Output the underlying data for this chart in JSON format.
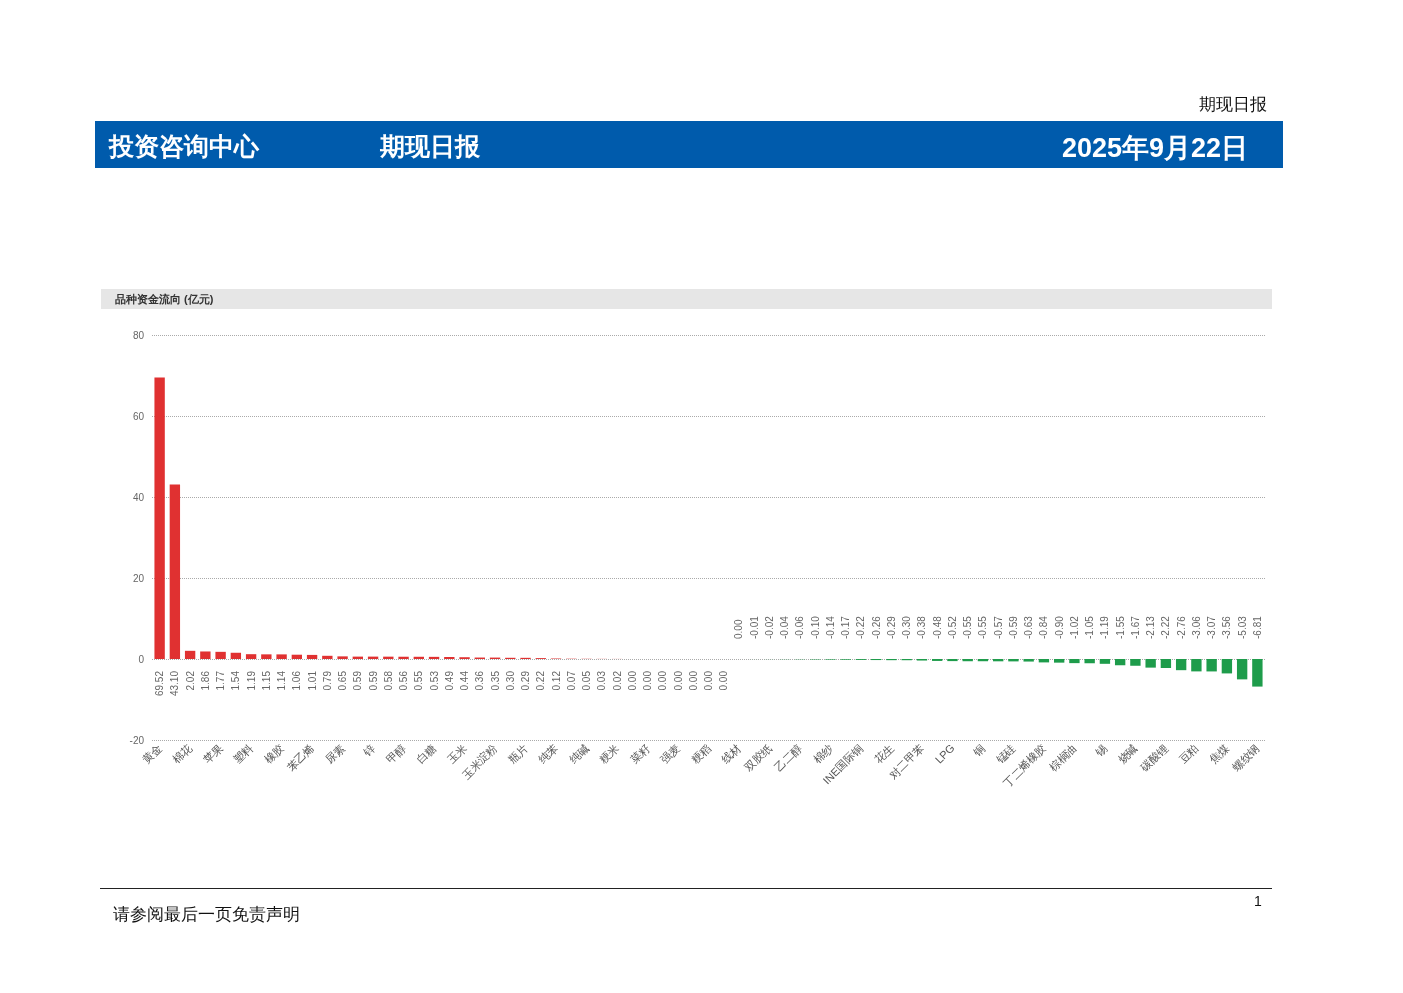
{
  "chart_data": {
    "type": "bar",
    "title": "品种资金流向 (亿元)",
    "categories": [
      "黄金",
      null,
      "棉花",
      null,
      "苹果",
      null,
      "塑料",
      null,
      "橡胶",
      null,
      "苯乙烯",
      null,
      "尿素",
      null,
      "锌",
      null,
      "甲醇",
      null,
      "白糖",
      null,
      "玉米",
      null,
      "玉米淀粉",
      null,
      "瓶片",
      null,
      "纯苯",
      null,
      "纯碱",
      null,
      "粳米",
      null,
      "菜籽",
      null,
      "强麦",
      null,
      "粳稻",
      null,
      "线材",
      null,
      "双胶纸",
      null,
      "乙二醇",
      null,
      "棉纱",
      null,
      "INE国际铜",
      null,
      "花生",
      null,
      "对二甲苯",
      null,
      "LPG",
      null,
      "铜",
      null,
      "锰硅",
      null,
      "丁二烯橡胶",
      null,
      "棕榈油",
      null,
      "锡",
      null,
      "烧碱",
      null,
      "碳酸锂",
      null,
      "豆粕",
      null,
      "焦煤",
      null,
      "螺纹钢"
    ],
    "series": [
      {
        "color": "#e03131",
        "values": [
          69.52,
          43.1,
          2.02,
          1.86,
          1.77,
          1.54,
          1.19,
          1.15,
          1.14,
          1.06,
          1.01,
          0.79,
          0.65,
          0.59,
          0.59,
          0.58,
          0.56,
          0.55,
          0.53,
          0.49,
          0.44,
          0.36,
          0.35,
          0.3,
          0.29,
          0.22,
          0.12,
          0.07,
          0.05,
          0.03,
          0.02,
          0,
          0,
          0,
          0,
          0,
          0,
          0,
          null,
          null,
          null,
          null,
          null,
          null,
          null,
          null,
          null,
          null,
          null,
          null,
          null,
          null,
          null,
          null,
          null,
          null,
          null,
          null,
          null,
          null,
          null,
          null,
          null,
          null,
          null,
          null,
          null,
          null,
          null,
          null,
          null,
          null,
          null
        ],
        "value_labels": [
          "69.52",
          "43.10",
          "2.02",
          "1.86",
          "1.77",
          "1.54",
          "1.19",
          "1.15",
          "1.14",
          "1.06",
          "1.01",
          "0.79",
          "0.65",
          "0.59",
          "0.59",
          "0.58",
          "0.56",
          "0.55",
          "0.53",
          "0.49",
          "0.44",
          "0.36",
          "0.35",
          "0.30",
          "0.29",
          "0.22",
          "0.12",
          "0.07",
          "0.05",
          "0.03",
          "0.02",
          "0.00",
          "0.00",
          "0.00",
          "0.00",
          "0.00",
          "0.00",
          "0.00",
          null,
          null,
          null,
          null,
          null,
          null,
          null,
          null,
          null,
          null,
          null,
          null,
          null,
          null,
          null,
          null,
          null,
          null,
          null,
          null,
          null,
          null,
          null,
          null,
          null,
          null,
          null,
          null,
          null,
          null,
          null,
          null,
          null,
          null,
          null
        ]
      },
      {
        "color": "#1e9c4b",
        "values": [
          null,
          null,
          null,
          null,
          null,
          null,
          null,
          null,
          null,
          null,
          null,
          null,
          null,
          null,
          null,
          null,
          null,
          null,
          null,
          null,
          null,
          null,
          null,
          null,
          null,
          null,
          null,
          null,
          null,
          null,
          null,
          null,
          null,
          null,
          null,
          null,
          null,
          null,
          0,
          -0.01,
          -0.02,
          -0.04,
          -0.06,
          -0.1,
          -0.14,
          -0.17,
          -0.22,
          -0.26,
          -0.29,
          -0.3,
          -0.38,
          -0.48,
          -0.52,
          -0.55,
          -0.55,
          -0.57,
          -0.59,
          -0.63,
          -0.84,
          -0.9,
          -1.02,
          -1.05,
          -1.19,
          -1.55,
          -1.67,
          -2.13,
          -2.22,
          -2.76,
          -3.06,
          -3.07,
          -3.56,
          -5.03,
          -6.81
        ],
        "value_labels": [
          null,
          null,
          null,
          null,
          null,
          null,
          null,
          null,
          null,
          null,
          null,
          null,
          null,
          null,
          null,
          null,
          null,
          null,
          null,
          null,
          null,
          null,
          null,
          null,
          null,
          null,
          null,
          null,
          null,
          null,
          null,
          null,
          null,
          null,
          null,
          null,
          null,
          null,
          "0.00",
          "-0.01",
          "-0.02",
          "-0.04",
          "-0.06",
          "-0.10",
          "-0.14",
          "-0.17",
          "-0.22",
          "-0.26",
          "-0.29",
          "-0.30",
          "-0.38",
          "-0.48",
          "-0.52",
          "-0.55",
          "-0.55",
          "-0.57",
          "-0.59",
          "-0.63",
          "-0.84",
          "-0.90",
          "-1.02",
          "-1.05",
          "-1.19",
          "-1.55",
          "-1.67",
          "-2.13",
          "-2.22",
          "-2.76",
          "-3.06",
          "-3.07",
          "-3.56",
          "-5.03",
          "-6.81"
        ]
      }
    ],
    "ylim": [
      -20,
      80
    ],
    "yticks": [
      -20,
      0,
      20,
      40,
      60,
      80
    ],
    "grid": "y",
    "annotations": [
      "期现日报",
      "投资咨询中心",
      "期现日报",
      "2025年9月22日",
      "请参阅最后一页免责声明",
      "1"
    ]
  }
}
